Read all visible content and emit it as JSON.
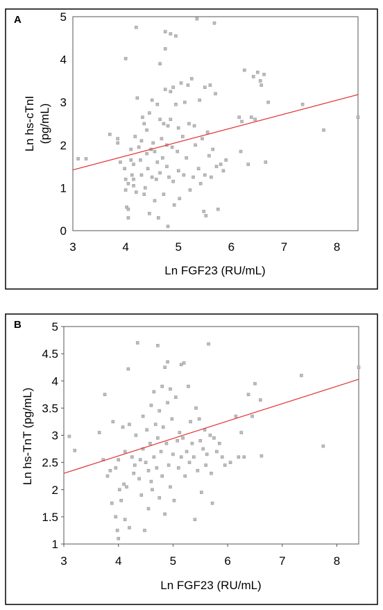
{
  "chart_data": [
    {
      "panel": "A",
      "type": "scatter",
      "xlabel": "Ln FGF23 (RU/mL)",
      "ylabel": [
        "Ln hs-cTnI",
        "(pg/mL)"
      ],
      "xlim": [
        3,
        8.4
      ],
      "ylim": [
        0,
        5
      ],
      "xticks": [
        "3",
        "4",
        "5",
        "6",
        "7",
        "8"
      ],
      "yticks": [
        "0",
        "1",
        "2",
        "3",
        "4",
        "5"
      ],
      "fit_line": {
        "x": [
          3,
          8.4
        ],
        "y": [
          1.42,
          3.18
        ]
      },
      "points": [
        [
          3.1,
          1.68
        ],
        [
          3.25,
          1.68
        ],
        [
          3.7,
          2.25
        ],
        [
          3.85,
          2.15
        ],
        [
          3.85,
          2.05
        ],
        [
          3.9,
          1.6
        ],
        [
          3.98,
          1.45
        ],
        [
          4.0,
          4.02
        ],
        [
          4.0,
          1.2
        ],
        [
          4.0,
          0.95
        ],
        [
          4.02,
          0.55
        ],
        [
          4.05,
          0.3
        ],
        [
          4.05,
          1.1
        ],
        [
          4.05,
          0.5
        ],
        [
          4.1,
          1.9
        ],
        [
          4.1,
          1.65
        ],
        [
          4.12,
          1.3
        ],
        [
          4.15,
          1.55
        ],
        [
          4.15,
          1.2
        ],
        [
          4.15,
          1.05
        ],
        [
          4.18,
          2.2
        ],
        [
          4.2,
          4.75
        ],
        [
          4.2,
          0.9
        ],
        [
          4.22,
          3.1
        ],
        [
          4.25,
          1.95
        ],
        [
          4.28,
          1.65
        ],
        [
          4.3,
          1.3
        ],
        [
          4.3,
          2.1
        ],
        [
          4.32,
          2.65
        ],
        [
          4.35,
          0.85
        ],
        [
          4.35,
          2.5
        ],
        [
          4.37,
          1.0
        ],
        [
          4.4,
          2.35
        ],
        [
          4.4,
          1.8
        ],
        [
          4.42,
          1.45
        ],
        [
          4.45,
          2.75
        ],
        [
          4.45,
          0.4
        ],
        [
          4.48,
          1.9
        ],
        [
          4.5,
          3.05
        ],
        [
          4.5,
          1.25
        ],
        [
          4.52,
          2.05
        ],
        [
          4.55,
          1.85
        ],
        [
          4.55,
          0.7
        ],
        [
          4.58,
          1.2
        ],
        [
          4.6,
          2.95
        ],
        [
          4.6,
          1.6
        ],
        [
          4.62,
          0.3
        ],
        [
          4.65,
          3.9
        ],
        [
          4.65,
          2.6
        ],
        [
          4.65,
          1.35
        ],
        [
          4.68,
          2.15
        ],
        [
          4.7,
          1.7
        ],
        [
          4.72,
          2.5
        ],
        [
          4.72,
          0.85
        ],
        [
          4.75,
          4.65
        ],
        [
          4.75,
          4.25
        ],
        [
          4.75,
          3.3
        ],
        [
          4.78,
          2.0
        ],
        [
          4.78,
          1.5
        ],
        [
          4.8,
          2.45
        ],
        [
          4.8,
          0.1
        ],
        [
          4.82,
          1.25
        ],
        [
          4.85,
          4.6
        ],
        [
          4.85,
          3.25
        ],
        [
          4.85,
          2.6
        ],
        [
          4.88,
          1.95
        ],
        [
          4.9,
          3.35
        ],
        [
          4.9,
          1.15
        ],
        [
          4.92,
          0.6
        ],
        [
          4.95,
          4.55
        ],
        [
          4.95,
          2.95
        ],
        [
          4.98,
          1.85
        ],
        [
          5.0,
          2.4
        ],
        [
          5.0,
          1.4
        ],
        [
          5.02,
          0.75
        ],
        [
          5.05,
          3.45
        ],
        [
          5.08,
          2.2
        ],
        [
          5.1,
          1.3
        ],
        [
          5.12,
          3.0
        ],
        [
          5.15,
          1.7
        ],
        [
          5.18,
          3.4
        ],
        [
          5.2,
          2.5
        ],
        [
          5.22,
          0.95
        ],
        [
          5.25,
          3.55
        ],
        [
          5.28,
          1.25
        ],
        [
          5.3,
          2.45
        ],
        [
          5.32,
          2.0
        ],
        [
          5.35,
          4.95
        ],
        [
          5.38,
          1.45
        ],
        [
          5.4,
          3.05
        ],
        [
          5.42,
          1.1
        ],
        [
          5.45,
          2.15
        ],
        [
          5.48,
          0.45
        ],
        [
          5.5,
          3.35
        ],
        [
          5.5,
          1.3
        ],
        [
          5.52,
          0.35
        ],
        [
          5.55,
          2.3
        ],
        [
          5.58,
          1.75
        ],
        [
          5.6,
          3.4
        ],
        [
          5.62,
          1.25
        ],
        [
          5.65,
          1.9
        ],
        [
          5.68,
          4.85
        ],
        [
          5.7,
          3.2
        ],
        [
          5.72,
          1.5
        ],
        [
          5.75,
          0.5
        ],
        [
          5.8,
          1.55
        ],
        [
          5.85,
          1.4
        ],
        [
          5.9,
          1.65
        ],
        [
          6.15,
          2.65
        ],
        [
          6.18,
          1.85
        ],
        [
          6.2,
          2.55
        ],
        [
          6.25,
          3.75
        ],
        [
          6.32,
          1.55
        ],
        [
          6.38,
          2.65
        ],
        [
          6.42,
          3.6
        ],
        [
          6.45,
          2.6
        ],
        [
          6.5,
          3.7
        ],
        [
          6.55,
          3.5
        ],
        [
          6.57,
          3.4
        ],
        [
          6.62,
          3.65
        ],
        [
          6.65,
          1.6
        ],
        [
          6.7,
          3.0
        ],
        [
          7.35,
          2.95
        ],
        [
          7.75,
          2.35
        ],
        [
          8.4,
          2.65
        ]
      ]
    },
    {
      "panel": "B",
      "type": "scatter",
      "xlabel": "Ln FGF23 (RU/mL)",
      "ylabel": [
        "Ln hs-TnT (pg/mL)"
      ],
      "xlim": [
        3,
        8.4
      ],
      "ylim": [
        1,
        5
      ],
      "xticks": [
        "3",
        "4",
        "5",
        "6",
        "7",
        "8"
      ],
      "yticks": [
        "1",
        "1.5",
        "2",
        "2.5",
        "3",
        "3.5",
        "4",
        "4.5",
        "5"
      ],
      "fit_line": {
        "x": [
          3,
          8.4
        ],
        "y": [
          2.3,
          4.03
        ]
      },
      "points": [
        [
          3.1,
          2.98
        ],
        [
          3.2,
          2.72
        ],
        [
          3.65,
          3.05
        ],
        [
          3.72,
          2.55
        ],
        [
          3.75,
          3.75
        ],
        [
          3.8,
          2.25
        ],
        [
          3.85,
          2.35
        ],
        [
          3.88,
          1.75
        ],
        [
          3.9,
          3.25
        ],
        [
          3.95,
          2.4
        ],
        [
          3.95,
          1.5
        ],
        [
          3.98,
          1.25
        ],
        [
          4.0,
          1.1
        ],
        [
          4.0,
          2.55
        ],
        [
          4.02,
          2.0
        ],
        [
          4.05,
          1.8
        ],
        [
          4.08,
          3.15
        ],
        [
          4.1,
          2.1
        ],
        [
          4.12,
          1.45
        ],
        [
          4.12,
          2.7
        ],
        [
          4.15,
          2.05
        ],
        [
          4.18,
          4.22
        ],
        [
          4.2,
          3.2
        ],
        [
          4.2,
          1.3
        ],
        [
          4.25,
          2.6
        ],
        [
          4.28,
          2.3
        ],
        [
          4.3,
          2.45
        ],
        [
          4.32,
          3.0
        ],
        [
          4.35,
          4.7
        ],
        [
          4.38,
          2.2
        ],
        [
          4.4,
          2.55
        ],
        [
          4.42,
          1.9
        ],
        [
          4.45,
          3.35
        ],
        [
          4.45,
          2.75
        ],
        [
          4.48,
          1.25
        ],
        [
          4.5,
          2.5
        ],
        [
          4.52,
          3.1
        ],
        [
          4.55,
          1.65
        ],
        [
          4.55,
          2.35
        ],
        [
          4.58,
          2.85
        ],
        [
          4.6,
          3.55
        ],
        [
          4.6,
          2.15
        ],
        [
          4.62,
          2.0
        ],
        [
          4.65,
          3.8
        ],
        [
          4.65,
          2.6
        ],
        [
          4.68,
          3.2
        ],
        [
          4.7,
          2.4
        ],
        [
          4.72,
          4.65
        ],
        [
          4.72,
          2.95
        ],
        [
          4.75,
          3.45
        ],
        [
          4.75,
          1.85
        ],
        [
          4.78,
          2.7
        ],
        [
          4.8,
          3.9
        ],
        [
          4.8,
          2.25
        ],
        [
          4.82,
          3.15
        ],
        [
          4.85,
          4.25
        ],
        [
          4.85,
          1.55
        ],
        [
          4.88,
          2.85
        ],
        [
          4.9,
          4.35
        ],
        [
          4.9,
          3.6
        ],
        [
          4.92,
          2.45
        ],
        [
          4.95,
          3.85
        ],
        [
          4.95,
          2.05
        ],
        [
          4.98,
          3.3
        ],
        [
          5.0,
          2.65
        ],
        [
          5.02,
          1.8
        ],
        [
          5.05,
          3.7
        ],
        [
          5.08,
          2.9
        ],
        [
          5.1,
          2.4
        ],
        [
          5.12,
          3.05
        ],
        [
          5.15,
          2.6
        ],
        [
          5.15,
          4.3
        ],
        [
          5.18,
          2.95
        ],
        [
          5.2,
          4.33
        ],
        [
          5.22,
          2.25
        ],
        [
          5.25,
          2.7
        ],
        [
          5.28,
          3.9
        ],
        [
          5.3,
          2.5
        ],
        [
          5.32,
          3.25
        ],
        [
          5.35,
          2.85
        ],
        [
          5.38,
          2.6
        ],
        [
          5.4,
          1.45
        ],
        [
          5.42,
          3.5
        ],
        [
          5.45,
          2.35
        ],
        [
          5.48,
          3.3
        ],
        [
          5.5,
          2.9
        ],
        [
          5.52,
          1.95
        ],
        [
          5.55,
          2.75
        ],
        [
          5.58,
          3.1
        ],
        [
          5.6,
          2.45
        ],
        [
          5.62,
          2.65
        ],
        [
          5.65,
          4.68
        ],
        [
          5.68,
          3.0
        ],
        [
          5.7,
          2.3
        ],
        [
          5.72,
          1.75
        ],
        [
          5.75,
          2.95
        ],
        [
          5.8,
          2.7
        ],
        [
          5.85,
          2.85
        ],
        [
          5.9,
          2.6
        ],
        [
          5.95,
          2.45
        ],
        [
          6.05,
          2.5
        ],
        [
          6.15,
          3.35
        ],
        [
          6.2,
          2.6
        ],
        [
          6.25,
          3.05
        ],
        [
          6.3,
          2.6
        ],
        [
          6.38,
          3.75
        ],
        [
          6.45,
          3.35
        ],
        [
          6.5,
          3.95
        ],
        [
          6.6,
          3.65
        ],
        [
          6.62,
          2.62
        ],
        [
          7.35,
          4.1
        ],
        [
          7.75,
          2.8
        ],
        [
          8.4,
          4.25
        ]
      ]
    }
  ]
}
